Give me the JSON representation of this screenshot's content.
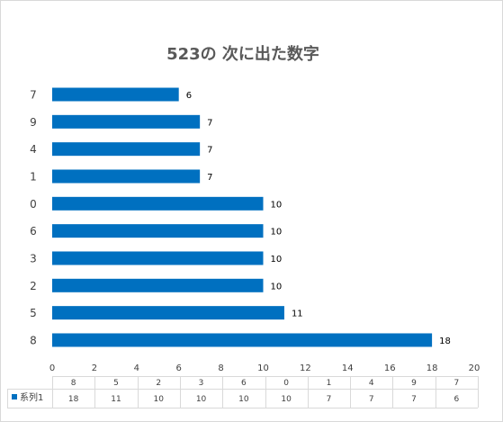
{
  "chart_data": {
    "type": "bar",
    "orientation": "horizontal",
    "title": "523の 次に出た数字",
    "categories": [
      "7",
      "9",
      "4",
      "1",
      "0",
      "6",
      "3",
      "2",
      "5",
      "8"
    ],
    "series": [
      {
        "name": "系列1",
        "values": [
          6,
          7,
          7,
          7,
          10,
          10,
          10,
          10,
          11,
          18
        ],
        "color": "#0070C0"
      }
    ],
    "xlim": [
      0,
      20
    ],
    "x_ticks": [
      0,
      2,
      4,
      6,
      8,
      10,
      12,
      14,
      16,
      18,
      20
    ],
    "data_labels": true,
    "grid": false,
    "data_table": {
      "categories": [
        "8",
        "5",
        "2",
        "3",
        "6",
        "0",
        "1",
        "4",
        "9",
        "7"
      ],
      "values": [
        18,
        11,
        10,
        10,
        10,
        10,
        7,
        7,
        7,
        6
      ]
    }
  }
}
